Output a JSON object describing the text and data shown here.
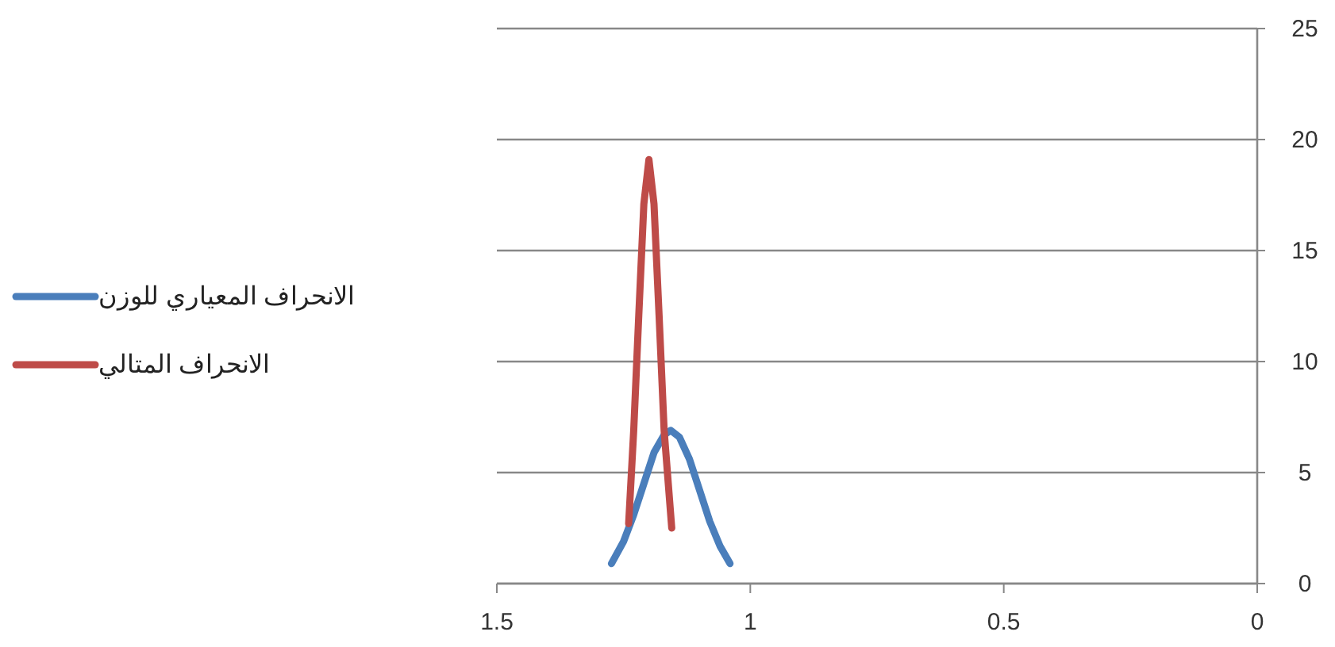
{
  "chart_data": {
    "type": "line",
    "xlim": [
      1.5,
      0
    ],
    "xticks": [
      1.5,
      1,
      0.5,
      0
    ],
    "ylim": [
      0,
      25
    ],
    "yticks": [
      0,
      5,
      10,
      15,
      20,
      25
    ],
    "grid": "y",
    "legend": "left",
    "line_style": "solid",
    "marker": "none",
    "series": [
      {
        "name": "الانحراف المعياري للوزن",
        "color": "#4a7ebb",
        "x": [
          1.274,
          1.25,
          1.23,
          1.21,
          1.19,
          1.17,
          1.157,
          1.14,
          1.12,
          1.1,
          1.08,
          1.06,
          1.04
        ],
        "values": [
          0.9,
          1.9,
          3.1,
          4.5,
          5.9,
          6.7,
          6.9,
          6.6,
          5.6,
          4.2,
          2.8,
          1.7,
          0.9
        ]
      },
      {
        "name": "الانحراف المتالي",
        "color": "#be4b48",
        "x": [
          1.24,
          1.23,
          1.22,
          1.21,
          1.2,
          1.19,
          1.18,
          1.17,
          1.155
        ],
        "values": [
          2.7,
          6.9,
          12.1,
          17.1,
          19.1,
          17.1,
          12.1,
          6.9,
          2.5
        ]
      }
    ]
  }
}
